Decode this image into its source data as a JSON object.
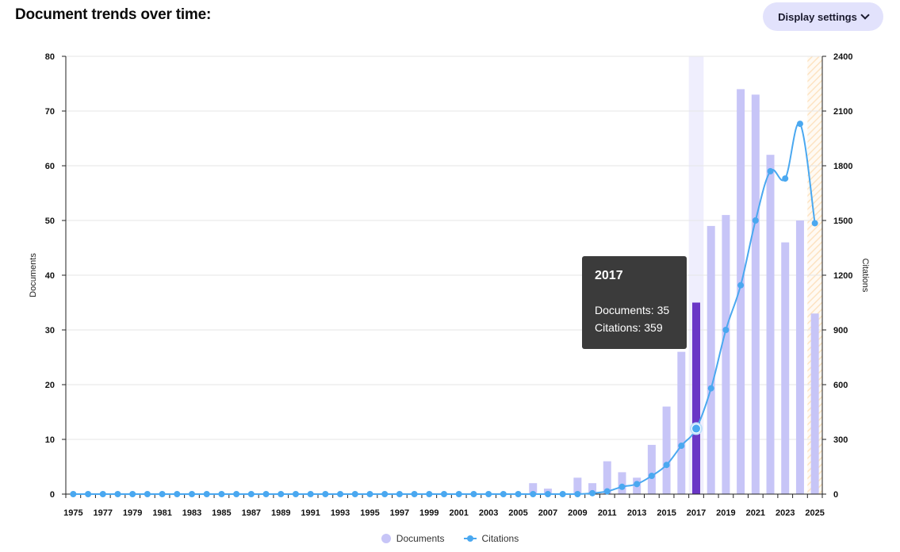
{
  "header": {
    "title": "Document trends over time:",
    "display_settings_label": "Display settings"
  },
  "colors": {
    "documents_bar": "#c7c5f7",
    "documents_bar_highlight": "#6a36c6",
    "citations_line": "#4aa8f0",
    "highlight_band": "#efeefd",
    "partial_year_hatch": "#fde3c2"
  },
  "chart_data": {
    "type": "bar",
    "x": [
      1975,
      1976,
      1977,
      1978,
      1979,
      1980,
      1981,
      1982,
      1983,
      1984,
      1985,
      1986,
      1987,
      1988,
      1989,
      1990,
      1991,
      1992,
      1993,
      1994,
      1995,
      1996,
      1997,
      1998,
      1999,
      2000,
      2001,
      2002,
      2003,
      2004,
      2005,
      2006,
      2007,
      2008,
      2009,
      2010,
      2011,
      2012,
      2013,
      2014,
      2015,
      2016,
      2017,
      2018,
      2019,
      2020,
      2021,
      2022,
      2023,
      2024,
      2025
    ],
    "x_tick_labels": [
      "1975",
      "1977",
      "1979",
      "1981",
      "1983",
      "1985",
      "1987",
      "1989",
      "1991",
      "1993",
      "1995",
      "1997",
      "1999",
      "2001",
      "2003",
      "2005",
      "2007",
      "2009",
      "2011",
      "2013",
      "2015",
      "2017",
      "2019",
      "2021",
      "2023",
      "2025"
    ],
    "series": [
      {
        "name": "Documents",
        "type": "bar",
        "axis": "left",
        "values": [
          0,
          0,
          0,
          0,
          0,
          0,
          0,
          0,
          0,
          0,
          0,
          0,
          0,
          0,
          0,
          0,
          0,
          0,
          0,
          0,
          0,
          0,
          0,
          0,
          0,
          0,
          0,
          0,
          0,
          0,
          0,
          2,
          1,
          0,
          3,
          2,
          6,
          4,
          3,
          9,
          16,
          26,
          35,
          49,
          51,
          74,
          73,
          62,
          46,
          50,
          33
        ]
      },
      {
        "name": "Citations",
        "type": "line",
        "axis": "right",
        "values": [
          0,
          0,
          0,
          0,
          0,
          0,
          0,
          0,
          0,
          0,
          0,
          0,
          0,
          0,
          0,
          0,
          0,
          0,
          0,
          0,
          0,
          0,
          0,
          0,
          0,
          0,
          0,
          0,
          0,
          0,
          0,
          0,
          0,
          0,
          0,
          5,
          15,
          40,
          55,
          100,
          160,
          265,
          359,
          580,
          900,
          1145,
          1500,
          1770,
          1730,
          2030,
          1485
        ]
      }
    ],
    "y_left": {
      "label": "Documents",
      "lim": [
        0,
        80
      ],
      "ticks": [
        "0",
        "10",
        "20",
        "30",
        "40",
        "50",
        "60",
        "70",
        "80"
      ]
    },
    "y_right": {
      "label": "Citations",
      "lim": [
        0,
        2400
      ],
      "ticks": [
        "0",
        "300",
        "600",
        "900",
        "1200",
        "1500",
        "1800",
        "2100",
        "2400"
      ]
    },
    "grid": true,
    "legend_position": "bottom",
    "highlighted_year": 2017,
    "partial_year": 2025,
    "tooltip": {
      "year": "2017",
      "documents_text": "Documents: 35",
      "citations_text": "Citations: 359"
    }
  }
}
